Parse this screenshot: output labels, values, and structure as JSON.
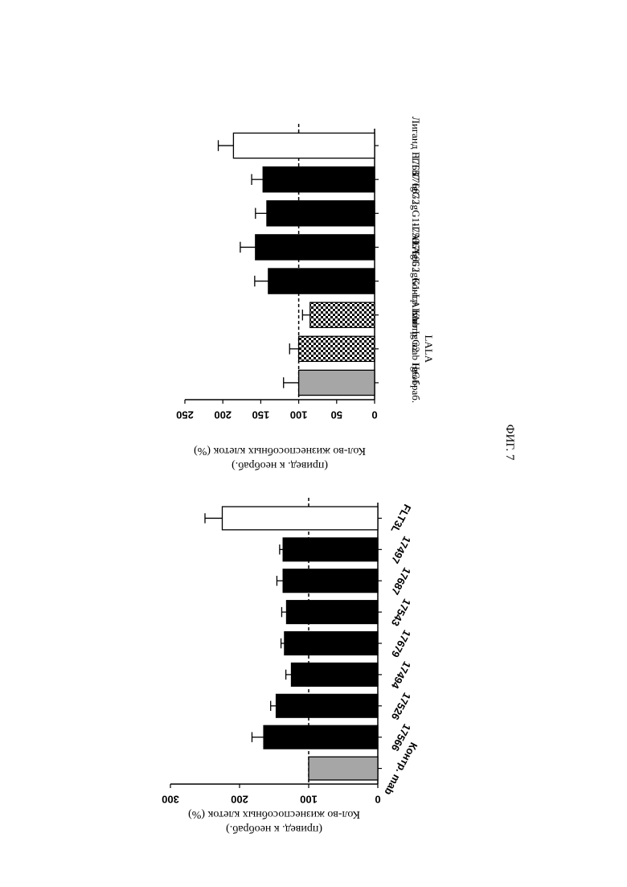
{
  "figure": {
    "caption": "ФИГ. 7"
  },
  "chart_data": [
    {
      "type": "bar",
      "orientation": "rotated-180",
      "categories": [
        "Контр. mab",
        "17566",
        "17526",
        "17494",
        "17679",
        "17543",
        "17687",
        "17497",
        "FLT3L"
      ],
      "values": [
        100,
        165,
        147,
        125,
        135,
        132,
        137,
        137,
        225
      ],
      "errors": [
        0,
        17,
        8,
        8,
        5,
        7,
        9,
        5,
        25
      ],
      "fills": [
        "gray",
        "black",
        "black",
        "black",
        "black",
        "black",
        "black",
        "black",
        "white"
      ],
      "ylabel_lines": [
        "Кол-во жизнеспособных клеток (%)",
        "(привед. к необраб.)"
      ],
      "yticks": [
        0,
        100,
        200,
        300
      ],
      "ylim": [
        0,
        300
      ],
      "reference_line": 100,
      "grid": false
    },
    {
      "type": "bar",
      "orientation": "rotated-180",
      "categories": [
        "Необраб.",
        "Контр. mab IgG1-LALA",
        "Контр. mab IgG2",
        "17566 IgG1-LALA",
        "17566 IgG2",
        "17667 IgG1-LALA",
        "17667 IgG2",
        "Лиганд FLT3"
      ],
      "category_lines": [
        [
          "Необраб."
        ],
        [
          "Контр. mab IgG1-",
          "LALA"
        ],
        [
          "Контр. mab IgG2"
        ],
        [
          "17566 IgG1-LALA"
        ],
        [
          "17566 IgG2"
        ],
        [
          "17667 IgG1-LALA"
        ],
        [
          "17667 IgG2"
        ],
        [
          "Лиганд FLT3"
        ]
      ],
      "values": [
        100,
        100,
        85,
        140,
        157,
        142,
        147,
        186
      ],
      "errors": [
        20,
        12,
        10,
        18,
        20,
        15,
        15,
        20
      ],
      "fills": [
        "gray",
        "checker",
        "checker",
        "black",
        "black",
        "black",
        "black",
        "white"
      ],
      "ylabel_lines": [
        "Кол-во жизнеспособных клеток (%)",
        "(привед. к необраб.)"
      ],
      "yticks": [
        0,
        50,
        100,
        150,
        200,
        250
      ],
      "ylim": [
        0,
        250
      ],
      "reference_line": 100,
      "grid": false
    }
  ]
}
